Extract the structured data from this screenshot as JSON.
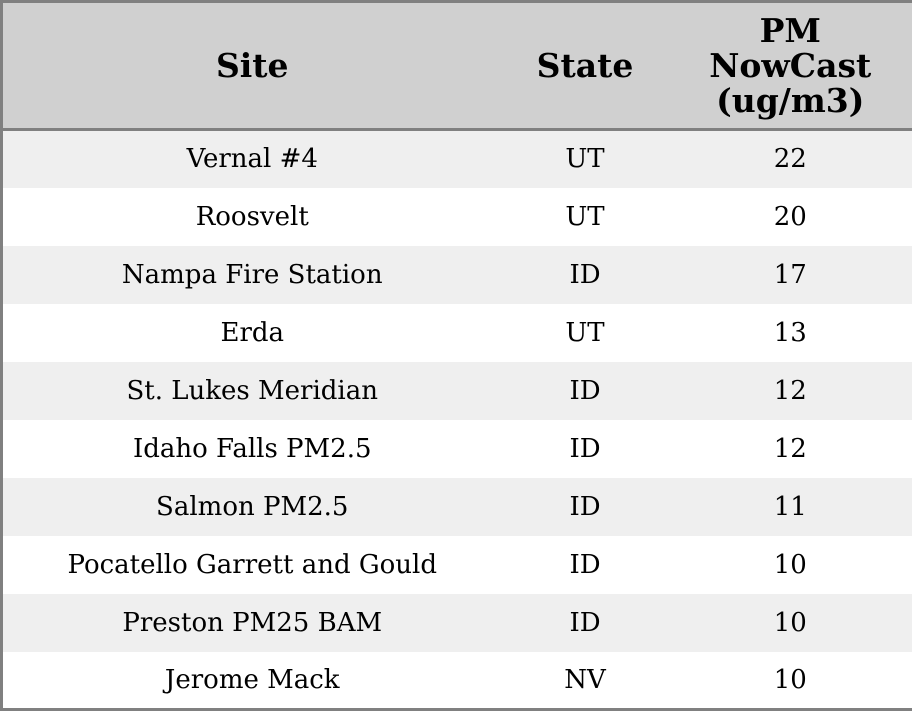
{
  "table": {
    "header": [
      "Site",
      "State",
      "PM NowCast (ug/m3)"
    ],
    "rows": [
      [
        "Vernal #4",
        "UT",
        22
      ],
      [
        "Roosvelt",
        "UT",
        20
      ],
      [
        "Nampa Fire Station",
        "ID",
        17
      ],
      [
        "Erda",
        "UT",
        13
      ],
      [
        "St. Lukes Meridian",
        "ID",
        12
      ],
      [
        "Idaho Falls PM2.5",
        "ID",
        12
      ],
      [
        "Salmon PM2.5",
        "ID",
        11
      ],
      [
        "Pocatello Garrett and Gould",
        "ID",
        10
      ],
      [
        "Preston PM25 BAM",
        "ID",
        10
      ],
      [
        "Jerome Mack",
        "NV",
        10
      ]
    ]
  }
}
